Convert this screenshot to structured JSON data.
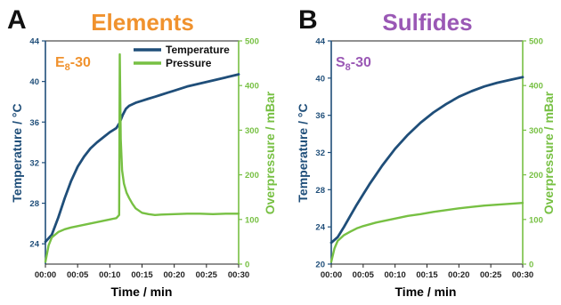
{
  "colors": {
    "temperature": "#1f4e79",
    "pressure": "#77c043",
    "elements_title": "#f0922e",
    "sulfides_title": "#9a58b5"
  },
  "chart_data": [
    {
      "type": "line",
      "panel": "A",
      "title": "Elements",
      "sample_label": {
        "base": "E",
        "sub": "8",
        "suffix": "-30"
      },
      "xlabel": "Time / min",
      "ylabel_left": "Temperature / °C",
      "ylabel_right": "Overpressure / mBar",
      "x_ticks": [
        "00:00",
        "00:05",
        "00:10",
        "00:15",
        "00:20",
        "00:25",
        "00:30"
      ],
      "xlim": [
        0,
        30
      ],
      "ylim_left": [
        22,
        44
      ],
      "yticks_left": [
        "24",
        "28",
        "32",
        "36",
        "40",
        "44"
      ],
      "ylim_right": [
        0,
        500
      ],
      "yticks_right": [
        "0",
        "100",
        "200",
        "300",
        "400",
        "500"
      ],
      "legend": {
        "position": "top-right",
        "entries": [
          "Temperature",
          "Pressure"
        ]
      },
      "series": [
        {
          "name": "Temperature",
          "axis": "left",
          "x": [
            0,
            1,
            2,
            3,
            4,
            5,
            6,
            7,
            8,
            9,
            10,
            11,
            11.5,
            12,
            12.5,
            13,
            14,
            15,
            16,
            17,
            18,
            19,
            20,
            22,
            24,
            26,
            28,
            30
          ],
          "y": [
            24.2,
            24.9,
            26.6,
            28.5,
            30.2,
            31.6,
            32.6,
            33.4,
            34.0,
            34.5,
            35.0,
            35.4,
            35.9,
            36.7,
            37.3,
            37.6,
            37.9,
            38.1,
            38.3,
            38.5,
            38.7,
            38.9,
            39.1,
            39.5,
            39.8,
            40.1,
            40.4,
            40.7
          ]
        },
        {
          "name": "Pressure",
          "axis": "right",
          "x": [
            0,
            0.5,
            1,
            2,
            3,
            4,
            5,
            6,
            7,
            8,
            9,
            10,
            11,
            11.45,
            11.55,
            11.7,
            11.9,
            12.2,
            12.6,
            13,
            13.5,
            14,
            14.5,
            15,
            16,
            17,
            18,
            20,
            22,
            24,
            26,
            28,
            30
          ],
          "y": [
            5,
            42,
            60,
            72,
            78,
            82,
            85,
            88,
            91,
            94,
            97,
            100,
            103,
            110,
            470,
            280,
            210,
            180,
            160,
            148,
            135,
            125,
            120,
            115,
            112,
            110,
            111,
            112,
            113,
            113,
            112,
            113,
            113
          ]
        }
      ]
    },
    {
      "type": "line",
      "panel": "B",
      "title": "Sulfides",
      "sample_label": {
        "base": "S",
        "sub": "8",
        "suffix": "-30"
      },
      "xlabel": "Time / min",
      "ylabel_left": "Temperature / °C",
      "ylabel_right": "Overpressure / mBar",
      "x_ticks": [
        "00:00",
        "00:05",
        "00:10",
        "00:15",
        "00:20",
        "00:25",
        "00:30"
      ],
      "xlim": [
        0,
        30
      ],
      "ylim_left": [
        20,
        44
      ],
      "yticks_left": [
        "20",
        "24",
        "28",
        "32",
        "36",
        "40",
        "44"
      ],
      "ylim_right": [
        0,
        500
      ],
      "yticks_right": [
        "0",
        "100",
        "200",
        "300",
        "400",
        "500"
      ],
      "series": [
        {
          "name": "Temperature",
          "axis": "left",
          "x": [
            0,
            1,
            2,
            3,
            4,
            5,
            6,
            7,
            8,
            10,
            12,
            14,
            16,
            18,
            20,
            22,
            24,
            26,
            28,
            30
          ],
          "y": [
            22.3,
            22.9,
            24.0,
            25.2,
            26.4,
            27.5,
            28.6,
            29.6,
            30.6,
            32.4,
            33.9,
            35.2,
            36.3,
            37.2,
            38.0,
            38.6,
            39.1,
            39.5,
            39.8,
            40.1
          ]
        },
        {
          "name": "Pressure",
          "axis": "right",
          "x": [
            0,
            0.5,
            1,
            2,
            3,
            4,
            5,
            6,
            7,
            8,
            10,
            12,
            14,
            16,
            18,
            20,
            22,
            24,
            26,
            28,
            30
          ],
          "y": [
            5,
            35,
            52,
            65,
            73,
            80,
            85,
            89,
            93,
            96,
            102,
            108,
            112,
            117,
            121,
            125,
            128,
            131,
            133,
            135,
            137
          ]
        }
      ]
    }
  ]
}
